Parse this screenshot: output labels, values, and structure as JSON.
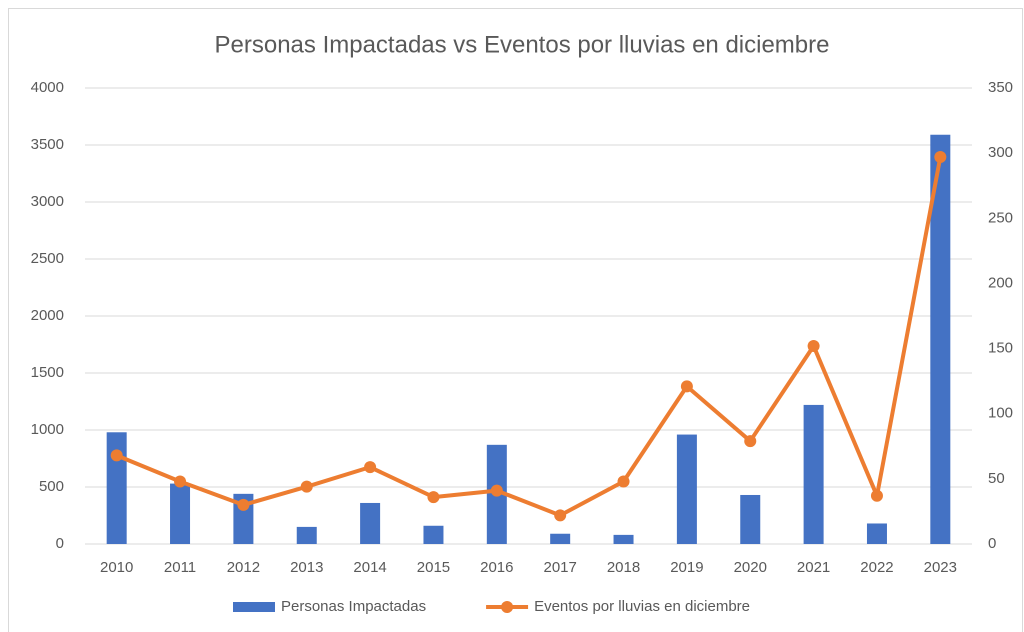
{
  "chart_data": {
    "type": "bar",
    "title": "Personas Impactadas vs Eventos por lluvias en diciembre",
    "categories": [
      "2010",
      "2011",
      "2012",
      "2013",
      "2014",
      "2015",
      "2016",
      "2017",
      "2018",
      "2019",
      "2020",
      "2021",
      "2022",
      "2023"
    ],
    "series": [
      {
        "name": "Personas Impactadas",
        "type": "bar",
        "color": "#4472c4",
        "axis": "y",
        "values": [
          980,
          530,
          440,
          150,
          360,
          160,
          870,
          90,
          80,
          960,
          430,
          1220,
          180,
          3590
        ]
      },
      {
        "name": "Eventos por lluvias en diciembre",
        "type": "line",
        "color": "#ed7d31",
        "axis": "y2",
        "values": [
          68,
          48,
          30,
          44,
          59,
          36,
          41,
          22,
          48,
          121,
          79,
          152,
          37,
          297
        ]
      }
    ],
    "ylim": [
      0,
      4000
    ],
    "yticks": [
      0,
      500,
      1000,
      1500,
      2000,
      2500,
      3000,
      3500,
      4000
    ],
    "y2lim": [
      0,
      350
    ],
    "y2ticks": [
      0,
      50,
      100,
      150,
      200,
      250,
      300,
      350
    ],
    "grid": true,
    "legend": "bottom"
  }
}
